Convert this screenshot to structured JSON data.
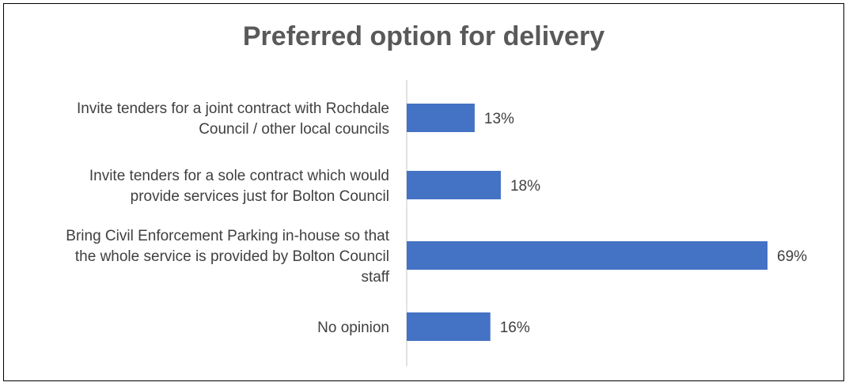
{
  "chart_data": {
    "type": "bar",
    "orientation": "horizontal",
    "title": "Preferred option for delivery",
    "categories": [
      [
        "Invite tenders for a joint contract with Rochdale",
        "Council / other local councils"
      ],
      [
        "Invite tenders for a sole contract which would",
        "provide services just for Bolton Council"
      ],
      [
        "Bring Civil Enforcement Parking in-house so that",
        "the whole service is provided by Bolton Council",
        "staff"
      ],
      [
        "No opinion"
      ]
    ],
    "values": [
      13,
      18,
      69,
      16
    ],
    "value_labels": [
      "13%",
      "18%",
      "69%",
      "16%"
    ],
    "xlim": [
      0,
      69
    ],
    "grid": false,
    "legend": "none",
    "colors": {
      "bar": "#4472C4",
      "text": "#404040",
      "title": "#595959",
      "axis": "#D9D9D9"
    }
  }
}
